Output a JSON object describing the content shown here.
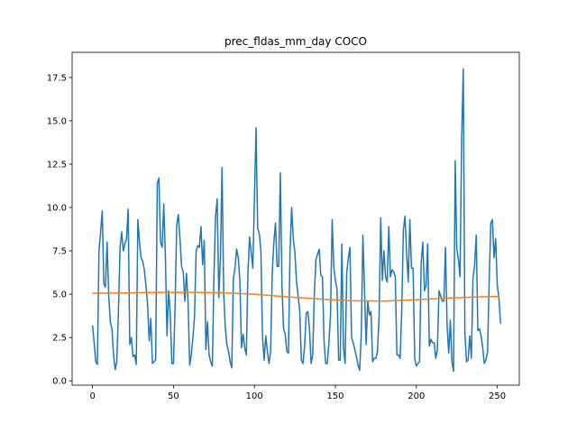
{
  "chart_data": {
    "type": "line",
    "title": "prec_fldas_mm_day COCO",
    "xlabel": "",
    "ylabel": "",
    "xlim": [
      -12.6,
      263.6
    ],
    "ylim": [
      -0.25,
      18.95
    ],
    "xticks": [
      0,
      50,
      100,
      150,
      200,
      250
    ],
    "xtick_labels": [
      "0",
      "50",
      "100",
      "150",
      "200",
      "250"
    ],
    "yticks": [
      0.0,
      2.5,
      5.0,
      7.5,
      10.0,
      12.5,
      15.0,
      17.5
    ],
    "ytick_labels": [
      "0.0",
      "2.5",
      "5.0",
      "7.5",
      "10.0",
      "12.5",
      "15.0",
      "17.5"
    ],
    "grid": false,
    "series": [
      {
        "color": "#1f77b4",
        "x_start": 0,
        "x_step": 1,
        "values": [
          3.2,
          2.2,
          1.1,
          0.95,
          7.5,
          8.6,
          9.8,
          5.6,
          5.4,
          8.0,
          4.9,
          3.4,
          3.0,
          1.5,
          0.65,
          1.1,
          4.0,
          7.7,
          8.6,
          7.5,
          7.9,
          8.2,
          9.9,
          2.1,
          2.5,
          1.4,
          1.5,
          0.95,
          9.3,
          8.0,
          7.1,
          6.9,
          6.4,
          5.5,
          4.4,
          2.3,
          3.6,
          1.0,
          1.1,
          1.2,
          11.4,
          11.7,
          8.0,
          7.7,
          10.2,
          7.2,
          2.6,
          5.2,
          3.9,
          1.0,
          1.0,
          4.3,
          9.0,
          9.6,
          8.2,
          6.6,
          6.3,
          4.6,
          6.2,
          4.6,
          0.9,
          1.5,
          2.5,
          3.7,
          7.5,
          7.8,
          7.7,
          8.9,
          6.7,
          8.1,
          1.8,
          3.4,
          1.5,
          1.1,
          0.85,
          6.1,
          9.5,
          10.5,
          4.8,
          7.1,
          12.3,
          5.1,
          3.1,
          2.1,
          1.7,
          1.1,
          0.75,
          5.9,
          6.5,
          7.6,
          7.1,
          5.8,
          1.9,
          2.7,
          1.9,
          1.5,
          6.3,
          8.3,
          7.4,
          6.5,
          10.5,
          14.6,
          8.8,
          8.5,
          7.5,
          2.5,
          1.2,
          2.6,
          1.7,
          1.0,
          1.7,
          6.2,
          8.0,
          9.1,
          6.6,
          6.6,
          12.0,
          5.5,
          3.0,
          2.7,
          1.7,
          1.6,
          7.5,
          10.0,
          8.2,
          7.4,
          5.7,
          4.9,
          4.0,
          1.2,
          1.0,
          2.0,
          3.9,
          4.0,
          3.0,
          1.0,
          1.5,
          5.0,
          7.0,
          7.3,
          7.6,
          6.1,
          6.0,
          2.3,
          1.0,
          1.0,
          2.2,
          3.8,
          9.3,
          6.6,
          5.8,
          5.3,
          1.2,
          1.2,
          7.9,
          1.9,
          1.0,
          6.2,
          7.1,
          7.7,
          2.5,
          2.2,
          1.8,
          1.4,
          0.9,
          0.6,
          2.7,
          8.4,
          5.2,
          2.1,
          4.6,
          3.8,
          4.0,
          1.1,
          1.3,
          1.3,
          1.7,
          3.7,
          9.4,
          5.8,
          7.5,
          6.0,
          5.7,
          8.9,
          6.0,
          6.4,
          6.3,
          6.0,
          1.5,
          1.5,
          1.3,
          4.1,
          8.7,
          9.5,
          7.4,
          5.7,
          9.3,
          6.5,
          6.5,
          1.3,
          0.85,
          1.0,
          1.1,
          6.8,
          8.0,
          5.2,
          5.5,
          7.9,
          2.0,
          2.4,
          2.2,
          2.2,
          1.3,
          1.8,
          5.2,
          4.9,
          4.6,
          4.6,
          7.7,
          3.2,
          1.6,
          3.5,
          1.1,
          0.55,
          12.7,
          7.6,
          7.0,
          6.0,
          14.0,
          18.0,
          2.7,
          1.1,
          1.2,
          2.6,
          1.3,
          5.9,
          6.7,
          8.4,
          2.9,
          3.0,
          2.6,
          1.9,
          1.0,
          1.2,
          1.7,
          5.8,
          9.1,
          9.3,
          7.1,
          8.2,
          5.5,
          4.8,
          3.3
        ]
      },
      {
        "color": "#ff7f0e",
        "x": [
          0,
          20,
          40,
          60,
          80,
          100,
          120,
          140,
          160,
          180,
          200,
          220,
          240,
          251
        ],
        "values": [
          5.05,
          5.07,
          5.1,
          5.1,
          5.08,
          5.0,
          4.85,
          4.72,
          4.62,
          4.6,
          4.68,
          4.78,
          4.85,
          4.87
        ]
      }
    ]
  }
}
